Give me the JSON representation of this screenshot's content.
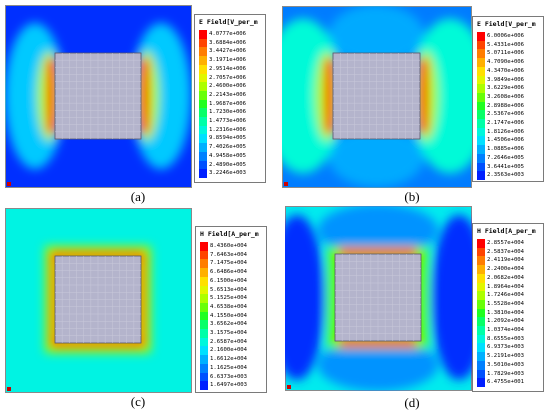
{
  "chart_data": [
    {
      "type": "heatmap",
      "panel": "a",
      "caption": "(a)",
      "legend_title": "E Field[V_per_m",
      "legend_values": [
        "4.0777e+006",
        "3.6884e+006",
        "3.4427e+006",
        "3.1971e+006",
        "2.9514e+006",
        "2.7057e+006",
        "2.4600e+006",
        "2.2143e+006",
        "1.9687e+006",
        "1.7230e+006",
        "1.4773e+006",
        "1.2316e+006",
        "9.8594e+005",
        "7.4026e+005",
        "4.9458e+005",
        "2.4890e+005",
        "3.2246e+003"
      ],
      "pattern": "edge-left-right",
      "background_level": 0.02
    },
    {
      "type": "heatmap",
      "panel": "b",
      "caption": "(b)",
      "legend_title": "E Field[V_per_m",
      "legend_values": [
        "6.0006e+006",
        "5.4331e+006",
        "5.0711e+006",
        "4.7090e+006",
        "4.3470e+006",
        "3.9849e+006",
        "3.6229e+006",
        "3.2608e+006",
        "2.8988e+006",
        "2.5367e+006",
        "2.1747e+006",
        "1.8126e+006",
        "1.4506e+006",
        "1.0885e+006",
        "7.2646e+005",
        "3.6441e+005",
        "2.3563e+003"
      ],
      "pattern": "edge-left-right-lobes",
      "background_level": 0.12
    },
    {
      "type": "heatmap",
      "panel": "c",
      "caption": "(c)",
      "legend_title": "H Field[A_per_m",
      "legend_values": [
        "8.4360e+004",
        "7.6463e+004",
        "7.1475e+004",
        "6.6486e+004",
        "6.1500e+004",
        "5.6513e+004",
        "5.1525e+004",
        "4.6538e+004",
        "4.1550e+004",
        "3.6562e+004",
        "3.1575e+004",
        "2.6587e+004",
        "2.1600e+004",
        "1.6612e+004",
        "1.1625e+004",
        "6.6373e+003",
        "1.6497e+003"
      ],
      "pattern": "edge-all",
      "background_level": 0.3
    },
    {
      "type": "heatmap",
      "panel": "d",
      "caption": "(d)",
      "legend_title": "H Field[A_per_m",
      "legend_values": [
        "2.8557e+004",
        "2.5837e+004",
        "2.4119e+004",
        "2.2400e+004",
        "2.0682e+004",
        "1.8964e+004",
        "1.7246e+004",
        "1.5528e+004",
        "1.3810e+004",
        "1.2092e+004",
        "1.0374e+004",
        "8.6555e+003",
        "6.9373e+003",
        "5.2191e+003",
        "3.5010e+003",
        "1.7829e+003",
        "6.4755e+001"
      ],
      "pattern": "edge-top-bottom-lobes",
      "background_level": 0.28
    }
  ],
  "colors": {
    "scale": [
      "#ff0000",
      "#ff5a00",
      "#ffa000",
      "#ffe000",
      "#d8ff00",
      "#80ff00",
      "#20ff20",
      "#00ff80",
      "#00ffd0",
      "#00e0ff",
      "#00a0ff",
      "#0060ff",
      "#0020ff"
    ],
    "scatterer_fill": "#b4b4cc",
    "scatterer_grid": "#c8c8da"
  }
}
